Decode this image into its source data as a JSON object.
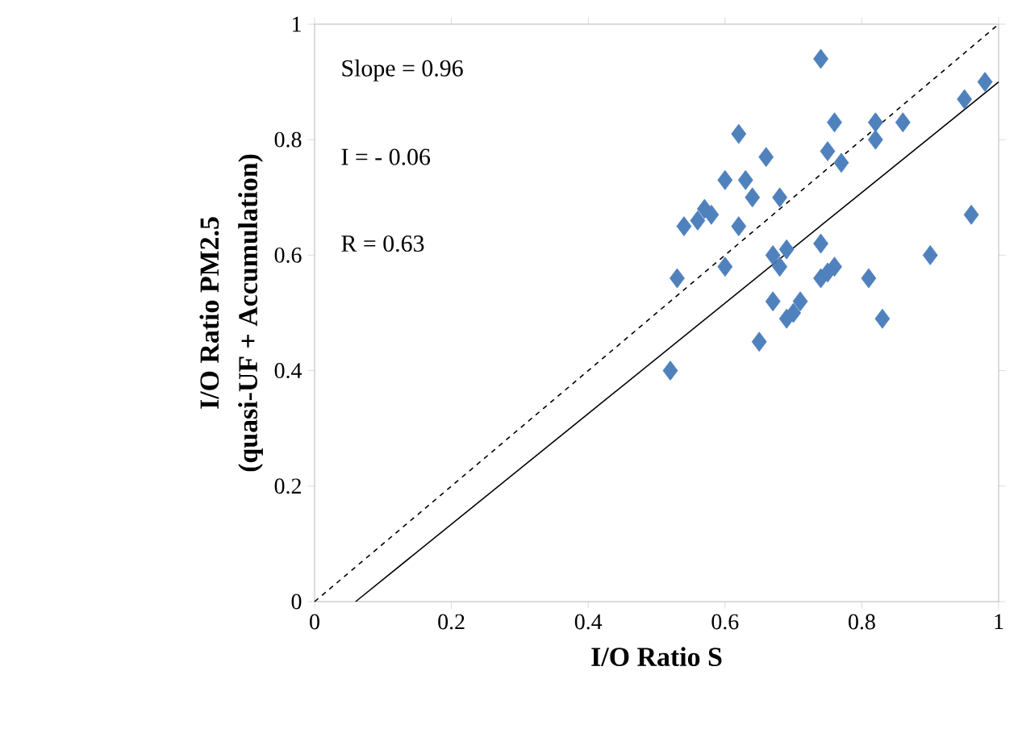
{
  "chart_data": {
    "type": "scatter",
    "xlabel": "I/O Ratio S",
    "ylabel": "I/O Ratio PM2.5 (quasi-UF + Accumulation)",
    "xlim": [
      0,
      1
    ],
    "ylim": [
      0,
      1
    ],
    "xticks": [
      0,
      0.2,
      0.4,
      0.6,
      0.8,
      1
    ],
    "yticks": [
      0,
      0.2,
      0.4,
      0.6,
      0.8,
      1
    ],
    "marker": "diamond",
    "grid": false,
    "annotations": [
      "Slope = 0.96",
      "I = - 0.06",
      "R = 0.63"
    ],
    "series": [
      {
        "type": "scatter",
        "color": "#4f81bd",
        "x": [
          0.52,
          0.53,
          0.54,
          0.56,
          0.57,
          0.58,
          0.6,
          0.6,
          0.62,
          0.62,
          0.63,
          0.64,
          0.65,
          0.66,
          0.67,
          0.67,
          0.68,
          0.68,
          0.69,
          0.69,
          0.7,
          0.71,
          0.74,
          0.74,
          0.74,
          0.75,
          0.75,
          0.76,
          0.76,
          0.77,
          0.81,
          0.82,
          0.82,
          0.83,
          0.86,
          0.9,
          0.95,
          0.96,
          0.98
        ],
        "values": [
          0.4,
          0.56,
          0.65,
          0.66,
          0.68,
          0.67,
          0.58,
          0.73,
          0.81,
          0.65,
          0.73,
          0.7,
          0.45,
          0.77,
          0.6,
          0.52,
          0.7,
          0.58,
          0.61,
          0.49,
          0.5,
          0.52,
          0.94,
          0.56,
          0.62,
          0.57,
          0.78,
          0.58,
          0.83,
          0.76,
          0.56,
          0.83,
          0.8,
          0.49,
          0.83,
          0.6,
          0.87,
          0.67,
          0.9
        ]
      },
      {
        "type": "line",
        "color": "#000000",
        "line_style": "solid",
        "marker": "none",
        "x": [
          0.06,
          1
        ],
        "values": [
          0,
          0.9
        ]
      },
      {
        "type": "line",
        "color": "#000000",
        "line_style": "dashed",
        "marker": "none",
        "x": [
          0,
          1
        ],
        "values": [
          0,
          1
        ]
      }
    ]
  }
}
